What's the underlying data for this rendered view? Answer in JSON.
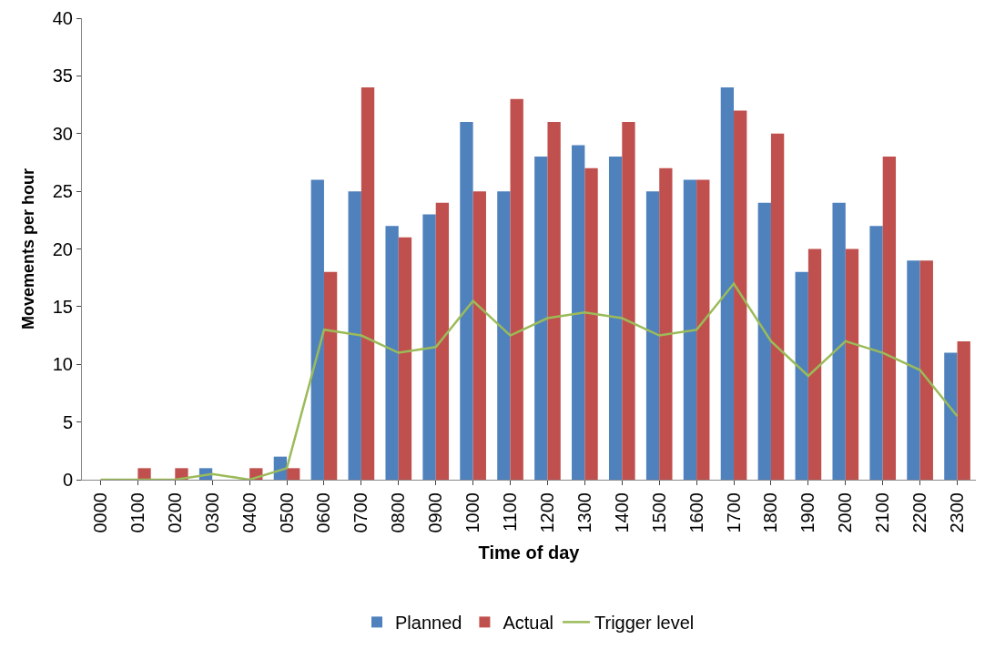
{
  "chart_data": {
    "type": "bar",
    "xlabel": "Time of day",
    "ylabel": "Movements per hour",
    "categories": [
      "0000",
      "0100",
      "0200",
      "0300",
      "0400",
      "0500",
      "0600",
      "0700",
      "0800",
      "0900",
      "1000",
      "1100",
      "1200",
      "1300",
      "1400",
      "1500",
      "1600",
      "1700",
      "1800",
      "1900",
      "2000",
      "2100",
      "2200",
      "2300"
    ],
    "series": [
      {
        "name": "Planned",
        "color": "#4f81bd",
        "values": [
          0,
          0,
          0,
          1,
          0,
          2,
          26,
          25,
          22,
          23,
          31,
          25,
          28,
          29,
          28,
          25,
          26,
          34,
          24,
          18,
          24,
          22,
          19,
          11
        ]
      },
      {
        "name": "Actual",
        "color": "#c0504d",
        "values": [
          0,
          1,
          1,
          0,
          1,
          1,
          18,
          34,
          21,
          24,
          25,
          33,
          31,
          27,
          31,
          27,
          26,
          32,
          30,
          20,
          20,
          28,
          19,
          12
        ]
      },
      {
        "name": "Trigger level",
        "type": "line",
        "color": "#9bbb59",
        "values": [
          0,
          0,
          0,
          0.5,
          0,
          1,
          13,
          12.5,
          11,
          11.5,
          15.5,
          12.5,
          14,
          14.5,
          14,
          12.5,
          13,
          17,
          12,
          9,
          12,
          11,
          9.5,
          5.5
        ]
      }
    ],
    "ylim": [
      0,
      40
    ],
    "yticks": [
      0,
      5,
      10,
      15,
      20,
      25,
      30,
      35,
      40
    ],
    "legend": "bottom",
    "marker": "none",
    "line_style": "solid"
  }
}
